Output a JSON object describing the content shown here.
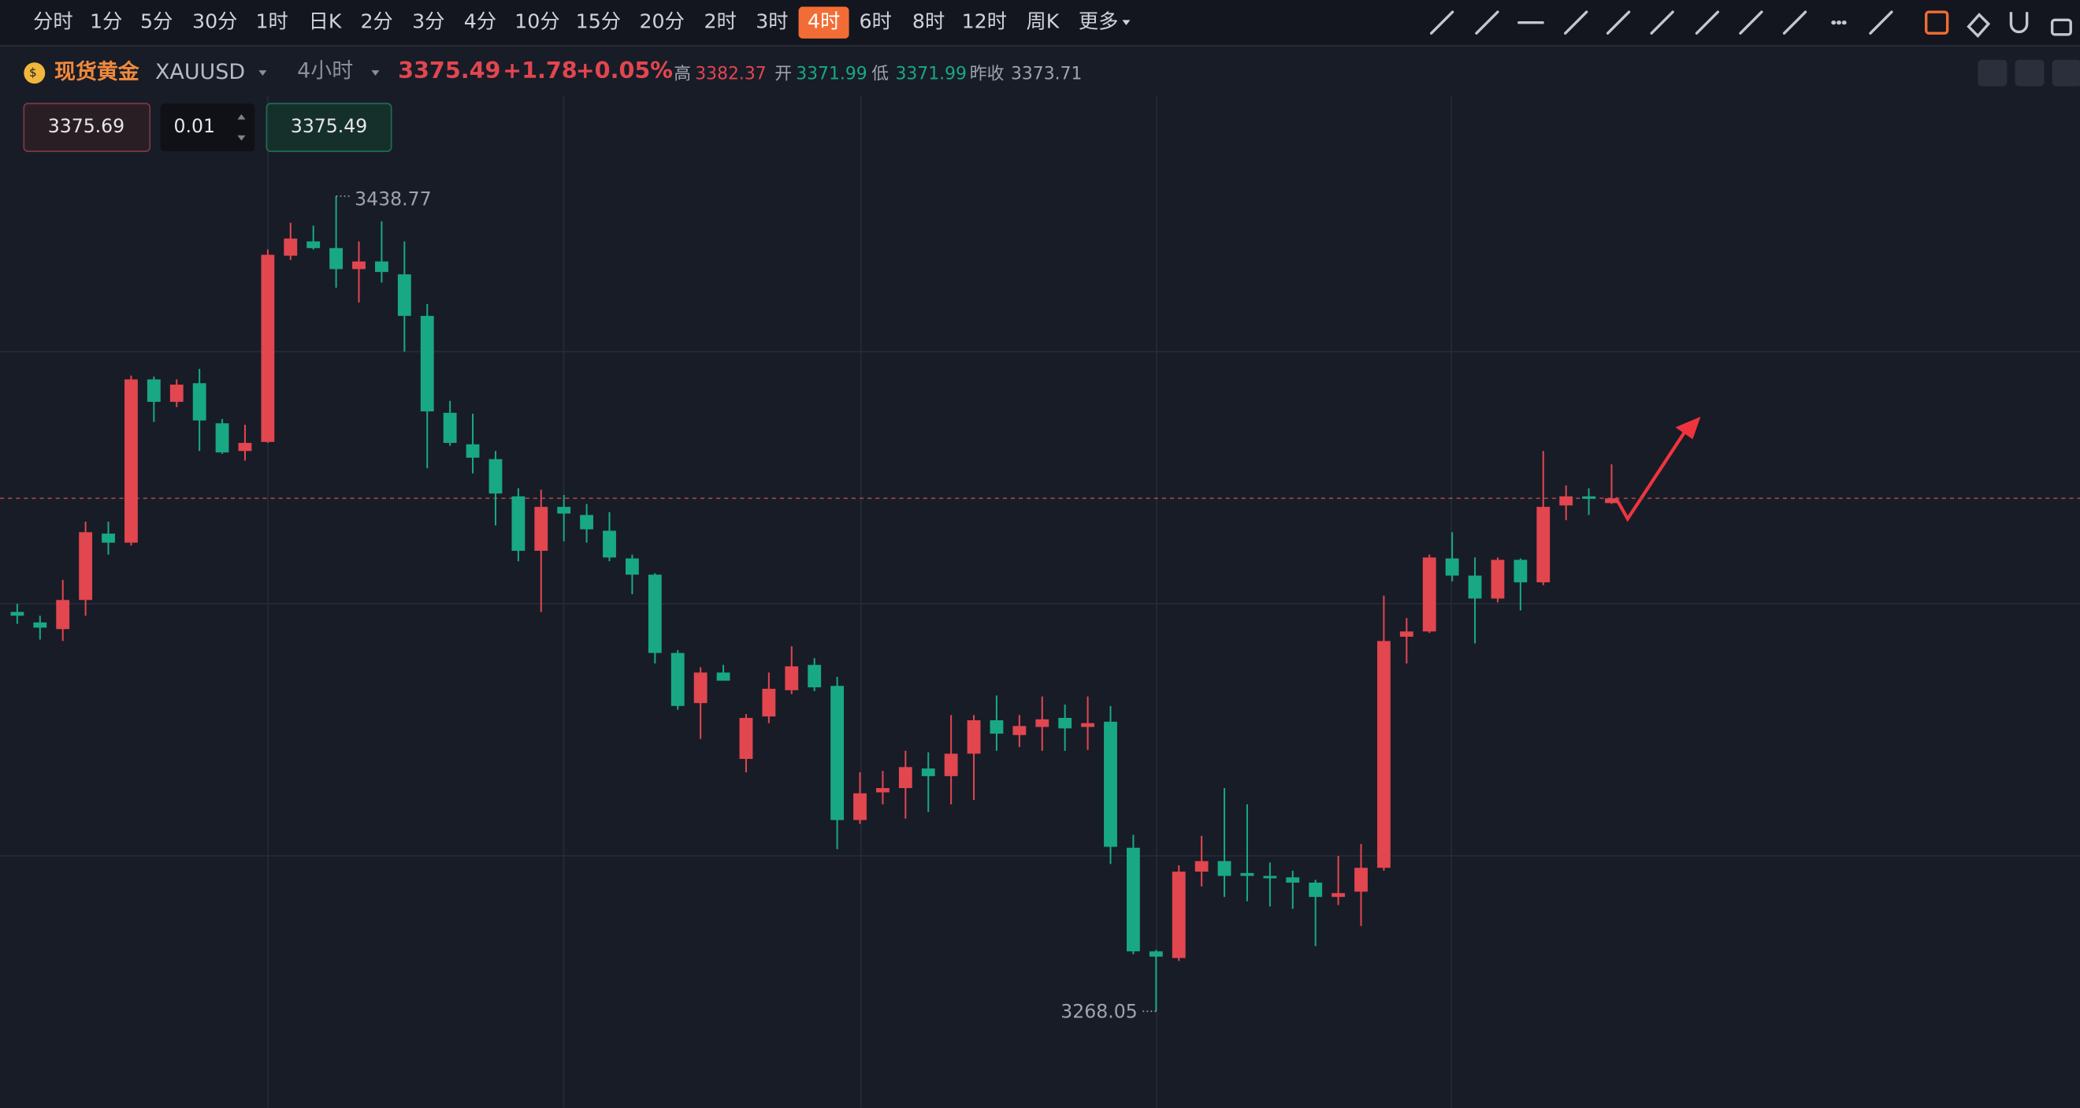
{
  "toolbar": {
    "intervals": [
      "分时",
      "1分",
      "5分",
      "30分",
      "1时",
      "日K",
      "2分",
      "3分",
      "4分",
      "10分",
      "15分",
      "20分",
      "2时",
      "3时",
      "4时",
      "6时",
      "8时",
      "12时",
      "周K",
      "更多"
    ],
    "active": 14
  },
  "header": {
    "name": "现货黄金",
    "symbol": "XAUUSD",
    "period": "4小时",
    "price": "3375.49",
    "change": "+1.78",
    "change_pct": "+0.05%",
    "high_label": "高",
    "high": "3382.37",
    "open_label": "开",
    "open": "3371.99",
    "low_label": "低",
    "low": "3371.99",
    "prev_label": "昨收",
    "prev": "3373.71"
  },
  "order": {
    "ask": "3375.69",
    "lots": "0.01",
    "bid": "3375.49"
  },
  "chart_data": {
    "type": "candlestick",
    "up_color": "#e2464f",
    "down_color": "#19a884",
    "ylim": [
      3247.8,
      3460.4
    ],
    "price_line": 3375.49,
    "open": [
      3351.7,
      3349.5,
      3348.1,
      3354.2,
      3368.1,
      3366.2,
      3400.4,
      3395.7,
      3399.6,
      3391.2,
      3385.4,
      3387.3,
      3426.3,
      3429.3,
      3427.9,
      3423.5,
      3425.1,
      3422.4,
      3413.7,
      3393.4,
      3386.8,
      3383.7,
      3375.9,
      3364.5,
      3373.7,
      3372.0,
      3368.7,
      3362.9,
      3359.5,
      3343.1,
      3332.6,
      3339.0,
      3320.9,
      3329.8,
      3335.3,
      3340.6,
      3336.2,
      3308.1,
      3313.9,
      3314.8,
      3318.9,
      3317.3,
      3322.0,
      3329.0,
      3325.9,
      3327.6,
      3329.5,
      3327.6,
      3328.7,
      3302.3,
      3280.6,
      3279.2,
      3297.3,
      3299.5,
      3297.0,
      3296.4,
      3296.1,
      3295.0,
      3292.0,
      3293.1,
      3298.1,
      3346.5,
      3347.6,
      3362.9,
      3359.3,
      3354.5,
      3362.6,
      3357.9,
      3374.0,
      3375.9,
      3374.5
    ],
    "high": [
      3353.4,
      3350.9,
      3358.4,
      3370.6,
      3370.6,
      3401.2,
      3401.0,
      3400.4,
      3402.6,
      3392.1,
      3390.9,
      3427.6,
      3433.2,
      3432.6,
      3438.77,
      3429.3,
      3433.5,
      3429.3,
      3416.2,
      3395.9,
      3393.2,
      3385.4,
      3377.6,
      3377.3,
      3376.2,
      3374.3,
      3372.6,
      3363.7,
      3359.8,
      3343.7,
      3340.1,
      3340.6,
      3330.3,
      3339.0,
      3344.5,
      3342.0,
      3338.1,
      3318.1,
      3318.4,
      3322.6,
      3322.3,
      3330.1,
      3330.1,
      3334.2,
      3330.1,
      3334.0,
      3332.3,
      3334.0,
      3332.0,
      3305.0,
      3280.9,
      3298.6,
      3304.8,
      3314.8,
      3311.4,
      3299.2,
      3297.5,
      3295.6,
      3300.6,
      3303.1,
      3355.1,
      3350.4,
      3363.7,
      3368.4,
      3363.1,
      3363.1,
      3362.9,
      3385.4,
      3378.2,
      3377.6,
      3382.6
    ],
    "low": [
      3349.2,
      3345.9,
      3345.6,
      3350.9,
      3363.7,
      3365.6,
      3391.5,
      3394.6,
      3385.4,
      3384.8,
      3383.4,
      3387.1,
      3425.4,
      3427.6,
      3419.6,
      3416.5,
      3420.7,
      3406.2,
      3381.8,
      3386.5,
      3380.7,
      3369.8,
      3362.3,
      3351.7,
      3366.5,
      3366.2,
      3362.3,
      3355.4,
      3340.9,
      3331.2,
      3325.1,
      3337.3,
      3318.1,
      3328.4,
      3334.5,
      3335.1,
      3302.0,
      3307.3,
      3311.4,
      3308.4,
      3309.8,
      3311.4,
      3312.3,
      3322.6,
      3323.4,
      3322.6,
      3322.6,
      3322.8,
      3298.9,
      3280.0,
      3268.05,
      3278.6,
      3294.2,
      3292.0,
      3291.1,
      3290.0,
      3289.5,
      3281.7,
      3290.3,
      3285.9,
      3297.5,
      3340.9,
      3347.3,
      3358.1,
      3345.1,
      3353.7,
      3352.0,
      3357.3,
      3370.9,
      3372.0,
      3374.3
    ],
    "close": [
      3350.9,
      3348.4,
      3354.2,
      3368.4,
      3366.2,
      3400.4,
      3395.7,
      3399.3,
      3391.8,
      3385.1,
      3387.1,
      3426.5,
      3429.9,
      3427.9,
      3423.5,
      3425.1,
      3422.9,
      3413.7,
      3393.7,
      3387.1,
      3384.0,
      3376.5,
      3364.5,
      3373.7,
      3372.3,
      3369.0,
      3363.1,
      3359.5,
      3343.1,
      3332.0,
      3339.0,
      3337.3,
      3329.5,
      3335.6,
      3340.3,
      3335.9,
      3308.1,
      3313.7,
      3314.8,
      3319.2,
      3317.3,
      3322.0,
      3329.0,
      3326.2,
      3327.8,
      3329.2,
      3327.3,
      3328.4,
      3302.5,
      3280.6,
      3279.5,
      3297.3,
      3299.5,
      3296.4,
      3296.4,
      3295.9,
      3295.0,
      3292.0,
      3292.8,
      3298.1,
      3345.6,
      3347.6,
      3363.1,
      3359.3,
      3354.5,
      3362.6,
      3357.9,
      3373.7,
      3375.9,
      3375.4,
      3375.49
    ]
  }
}
